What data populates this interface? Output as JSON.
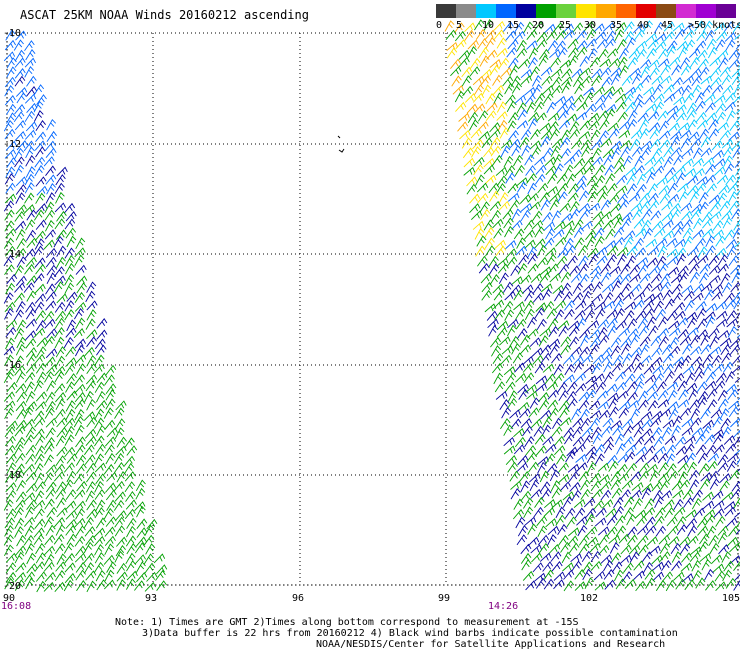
{
  "title": "ASCAT 25KM NOAA Winds 20160212 ascending",
  "legend": {
    "colors": [
      "#3a3a3a",
      "#8a8a8a",
      "#00c8ff",
      "#0066ff",
      "#00009e",
      "#00a000",
      "#6ad23c",
      "#ffe400",
      "#ffa800",
      "#ff6400",
      "#e30000",
      "#8a4a14",
      "#d22ad2",
      "#a000d2",
      "#6a0096"
    ],
    "labels": [
      "0",
      "5",
      "10",
      "15",
      "20",
      "25",
      "30",
      "35",
      "40",
      "45",
      ">50 knots"
    ]
  },
  "map": {
    "lat_labels": [
      "-10",
      "-12",
      "-14",
      "-16",
      "-18",
      "-20"
    ],
    "lon_labels": [
      "90",
      "93",
      "96",
      "99",
      "102",
      "105"
    ],
    "time_labels": [
      "16:08",
      "14:26"
    ]
  },
  "notes": [
    "Note: 1) Times are GMT 2)Times along bottom correspond to measurement at -15S",
    "3)Data buffer is 22 hrs from 20160212 4) Black wind barbs indicate possible contamination",
    "NOAA/NESDIS/Center for Satellite Applications and Research"
  ]
}
